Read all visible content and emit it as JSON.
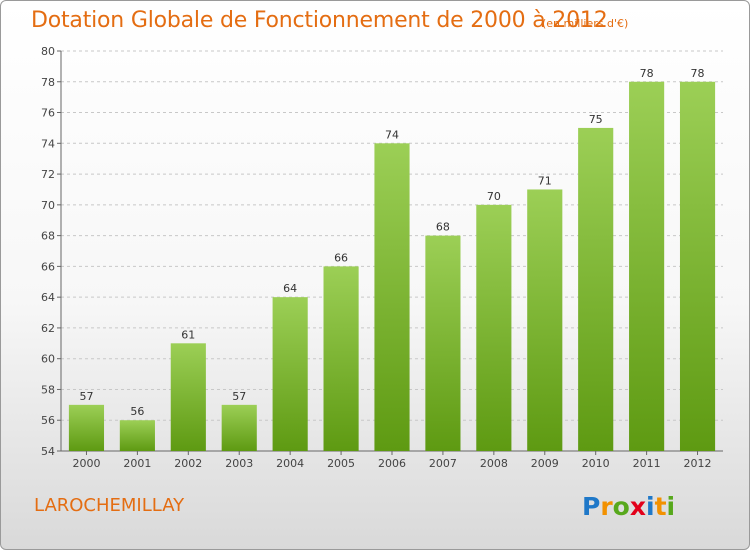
{
  "header": {
    "title": "Dotation Globale de Fonctionnement de 2000 à 2012",
    "subtitle": "(en milliers d'€)"
  },
  "footer": {
    "commune": "LAROCHEMILLAY",
    "logo_text": "Proxiti",
    "logo_colors": [
      "#1f78c8",
      "#f29100",
      "#57a81c",
      "#e2001a",
      "#1f78c8",
      "#f29100",
      "#57a81c"
    ]
  },
  "colors": {
    "accent": "#e46d12",
    "bar_top": "#9ccf56",
    "bar_bottom": "#5e9a12",
    "grid": "#c8c8c8"
  },
  "chart_data": {
    "type": "bar",
    "categories": [
      "2000",
      "2001",
      "2002",
      "2003",
      "2004",
      "2005",
      "2006",
      "2007",
      "2008",
      "2009",
      "2010",
      "2011",
      "2012"
    ],
    "values": [
      57,
      56,
      61,
      57,
      64,
      66,
      74,
      68,
      70,
      71,
      75,
      78,
      78
    ],
    "title": "Dotation Globale de Fonctionnement de 2000 à 2012",
    "subtitle": "(en milliers d'€)",
    "xlabel": "",
    "ylabel": "",
    "ylim": [
      54,
      80
    ],
    "yticks": [
      54,
      56,
      58,
      60,
      62,
      64,
      66,
      68,
      70,
      72,
      74,
      76,
      78,
      80
    ],
    "grid": true,
    "legend": "none"
  }
}
